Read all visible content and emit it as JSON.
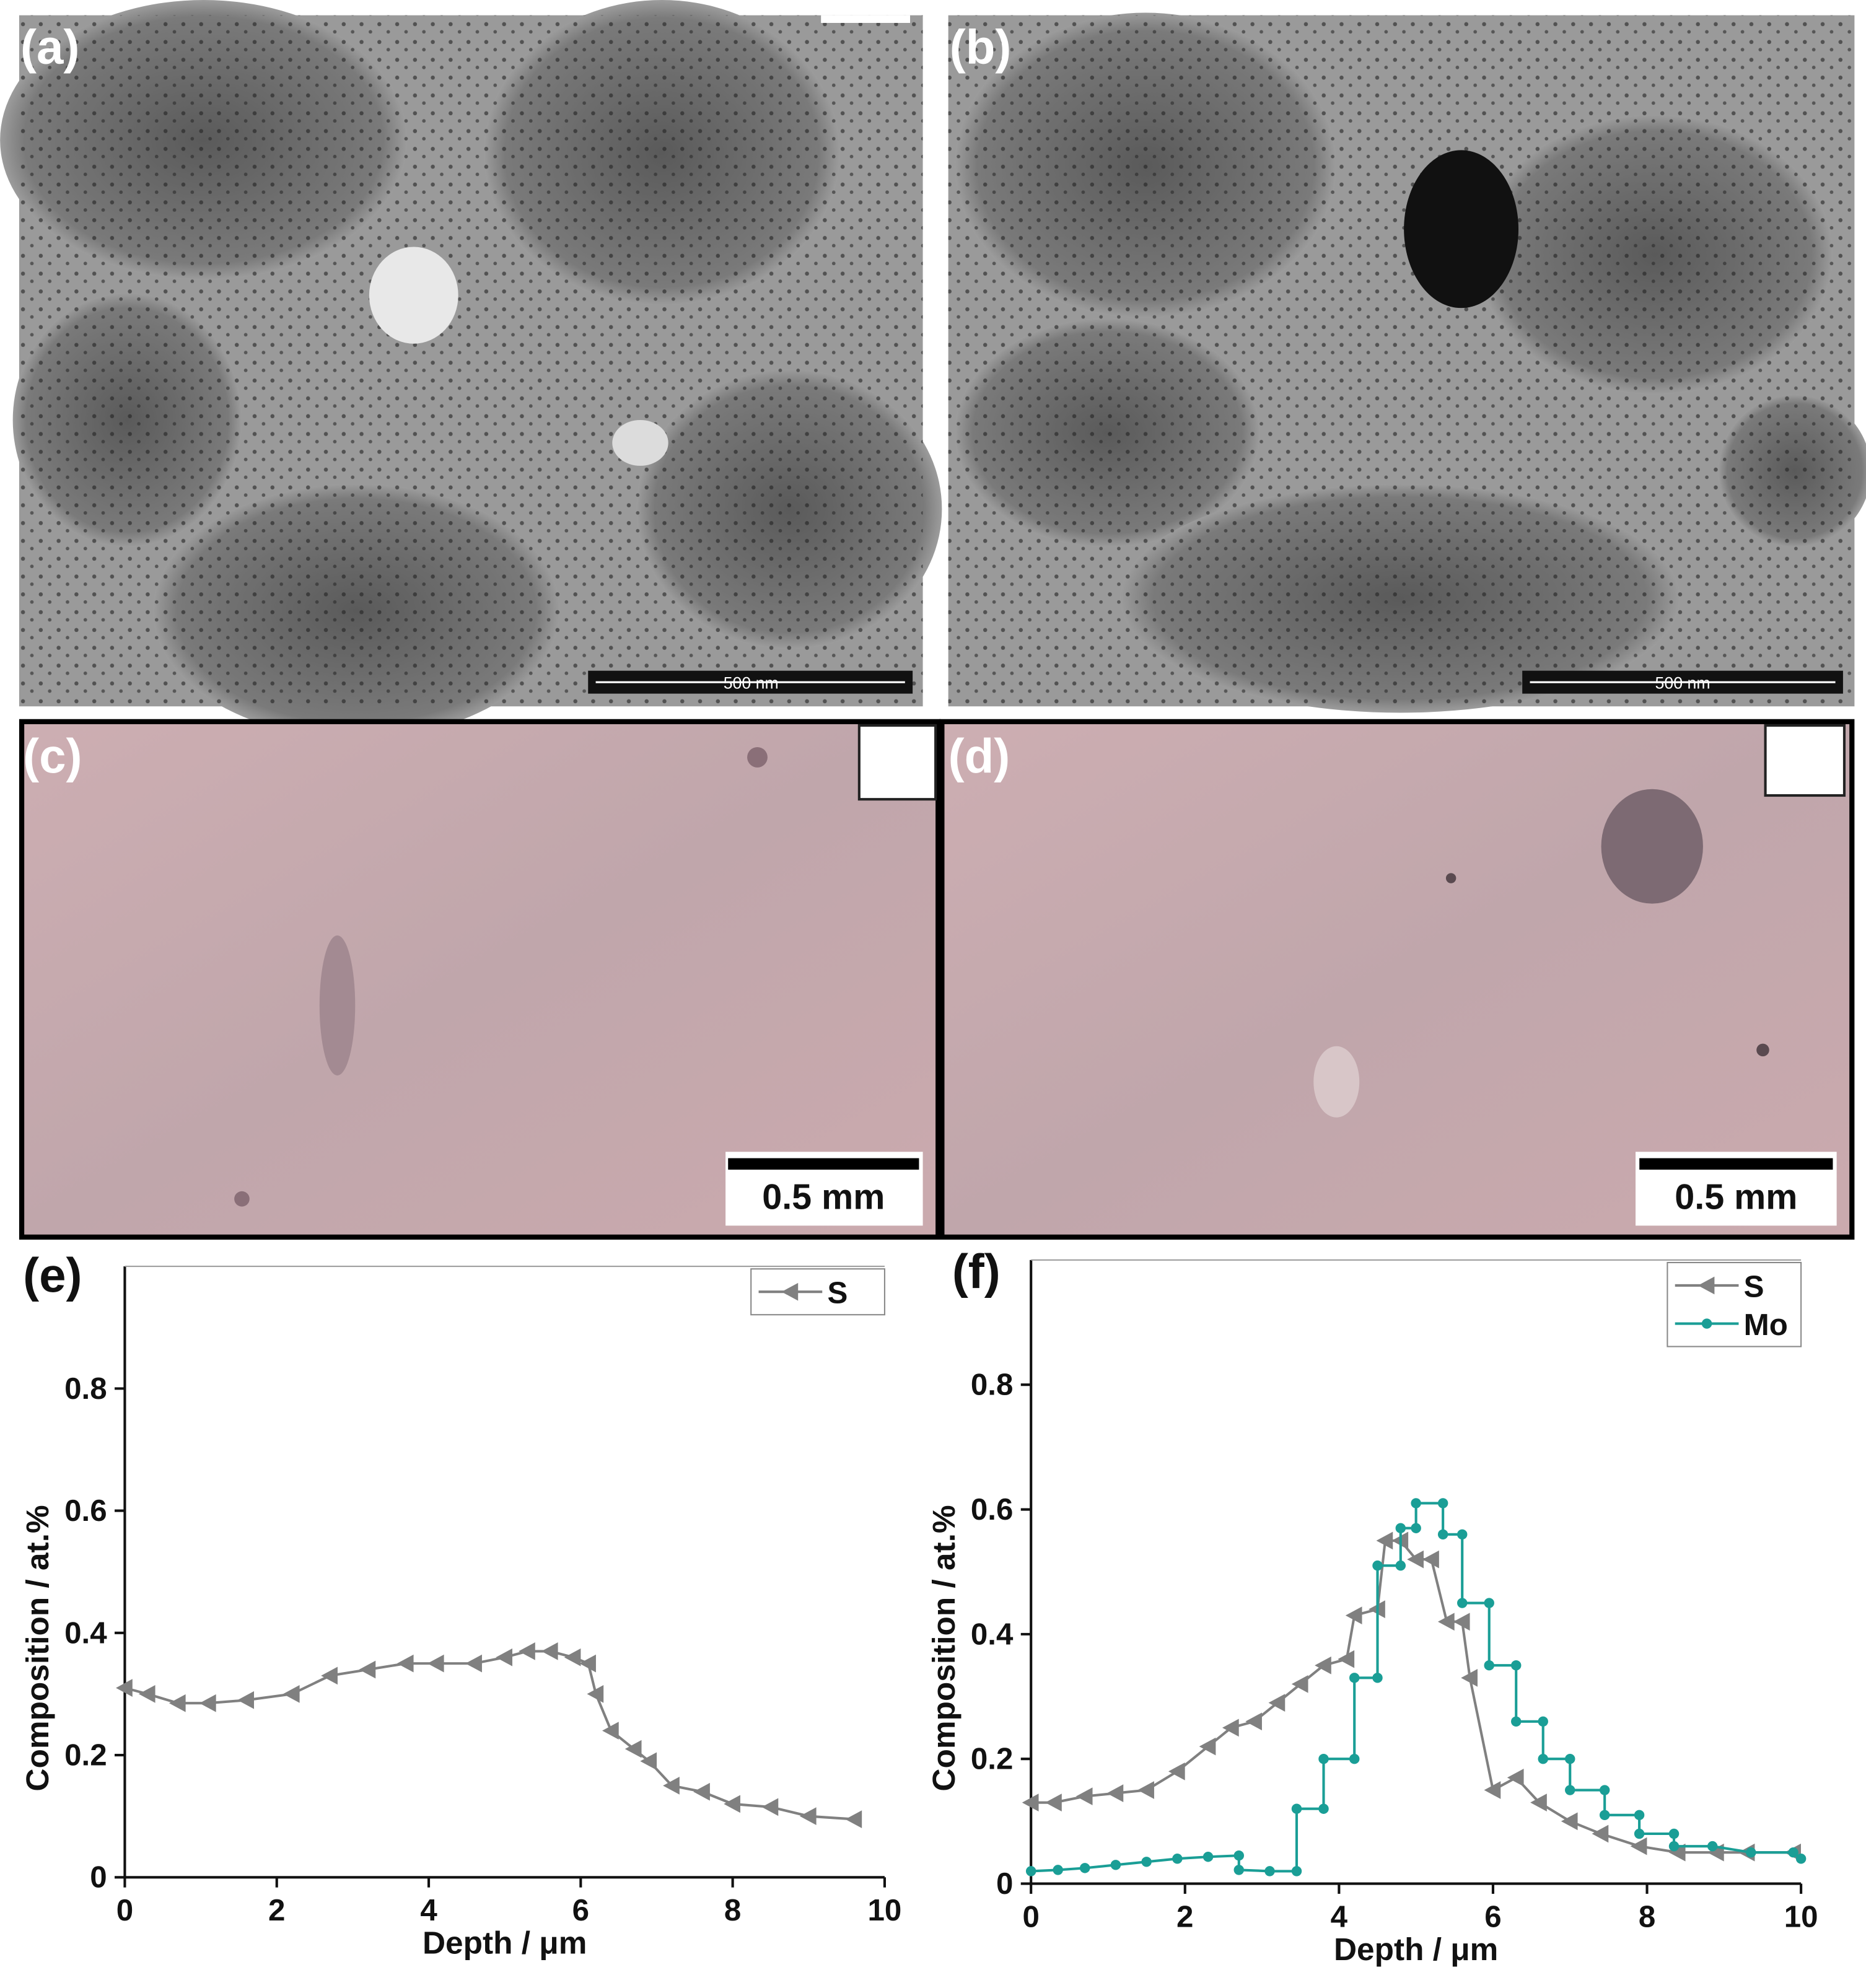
{
  "panels": [
    {
      "label": "(a)",
      "scale_bar": "500 nm"
    },
    {
      "label": "(b)",
      "scale_bar": "500 nm"
    },
    {
      "label": "(c)",
      "scale_bar": "0.5 mm"
    },
    {
      "label": "(d)",
      "scale_bar": "0.5 mm"
    }
  ],
  "chart_data": [
    {
      "type": "line",
      "panel_label": "(e)",
      "x_label": "Depth / μm",
      "y_label": "Composition / at.%",
      "xlim": [
        0,
        10
      ],
      "ylim": [
        0,
        1
      ],
      "xticks": [
        0,
        2,
        4,
        6,
        8,
        10
      ],
      "yticks": [
        0,
        0.2,
        0.4,
        0.6,
        0.8
      ],
      "legend": "upper right",
      "series": [
        {
          "name": "S",
          "color": "#808080",
          "marker": "triangle-left",
          "x": [
            0,
            0.3,
            0.7,
            1.1,
            1.6,
            2.2,
            2.7,
            3.2,
            3.7,
            4.1,
            4.6,
            5.0,
            5.3,
            5.6,
            5.9,
            6.1,
            6.2,
            6.4,
            6.7,
            6.9,
            7.2,
            7.6,
            8.0,
            8.5,
            9.0,
            9.6
          ],
          "values": [
            0.31,
            0.3,
            0.285,
            0.285,
            0.29,
            0.3,
            0.33,
            0.34,
            0.35,
            0.35,
            0.35,
            0.36,
            0.37,
            0.37,
            0.36,
            0.35,
            0.3,
            0.24,
            0.21,
            0.19,
            0.15,
            0.14,
            0.12,
            0.115,
            0.1,
            0.095
          ]
        }
      ]
    },
    {
      "type": "line",
      "panel_label": "(f)",
      "x_label": "Depth / μm",
      "y_label": "Composition / at.%",
      "xlim": [
        0,
        10
      ],
      "ylim": [
        0,
        1
      ],
      "xticks": [
        0,
        2,
        4,
        6,
        8,
        10
      ],
      "yticks": [
        0,
        0.2,
        0.4,
        0.6,
        0.8
      ],
      "legend": "upper right",
      "series": [
        {
          "name": "S",
          "color": "#808080",
          "marker": "triangle-left",
          "x": [
            0,
            0.3,
            0.7,
            1.1,
            1.5,
            1.9,
            2.3,
            2.6,
            2.9,
            3.2,
            3.5,
            3.8,
            4.1,
            4.2,
            4.5,
            4.6,
            4.8,
            5.0,
            5.2,
            5.4,
            5.6,
            5.7,
            6.0,
            6.3,
            6.6,
            7.0,
            7.4,
            7.9,
            8.4,
            8.9,
            9.3,
            9.9
          ],
          "values": [
            0.13,
            0.13,
            0.14,
            0.145,
            0.15,
            0.18,
            0.22,
            0.25,
            0.26,
            0.29,
            0.32,
            0.35,
            0.36,
            0.43,
            0.44,
            0.55,
            0.55,
            0.52,
            0.52,
            0.42,
            0.42,
            0.33,
            0.15,
            0.17,
            0.13,
            0.1,
            0.08,
            0.06,
            0.05,
            0.05,
            0.05,
            0.05
          ]
        },
        {
          "name": "Mo",
          "color": "#1a9e96",
          "marker": "circle",
          "x": [
            0,
            0.35,
            0.7,
            1.1,
            1.5,
            1.9,
            2.3,
            2.7,
            2.7,
            3.1,
            3.45,
            3.45,
            3.8,
            3.8,
            4.2,
            4.2,
            4.5,
            4.5,
            4.8,
            4.8,
            5.0,
            5.0,
            5.35,
            5.35,
            5.6,
            5.6,
            5.95,
            5.95,
            6.3,
            6.3,
            6.65,
            6.65,
            7.0,
            7.0,
            7.45,
            7.45,
            7.9,
            7.9,
            8.35,
            8.35,
            8.85,
            9.35,
            9.9,
            10
          ],
          "values": [
            0.02,
            0.022,
            0.025,
            0.03,
            0.035,
            0.04,
            0.043,
            0.045,
            0.022,
            0.02,
            0.02,
            0.12,
            0.12,
            0.2,
            0.2,
            0.33,
            0.33,
            0.51,
            0.51,
            0.57,
            0.57,
            0.61,
            0.61,
            0.56,
            0.56,
            0.45,
            0.45,
            0.35,
            0.35,
            0.26,
            0.26,
            0.2,
            0.2,
            0.15,
            0.15,
            0.11,
            0.11,
            0.08,
            0.08,
            0.06,
            0.06,
            0.05,
            0.05,
            0.04
          ]
        }
      ]
    }
  ]
}
